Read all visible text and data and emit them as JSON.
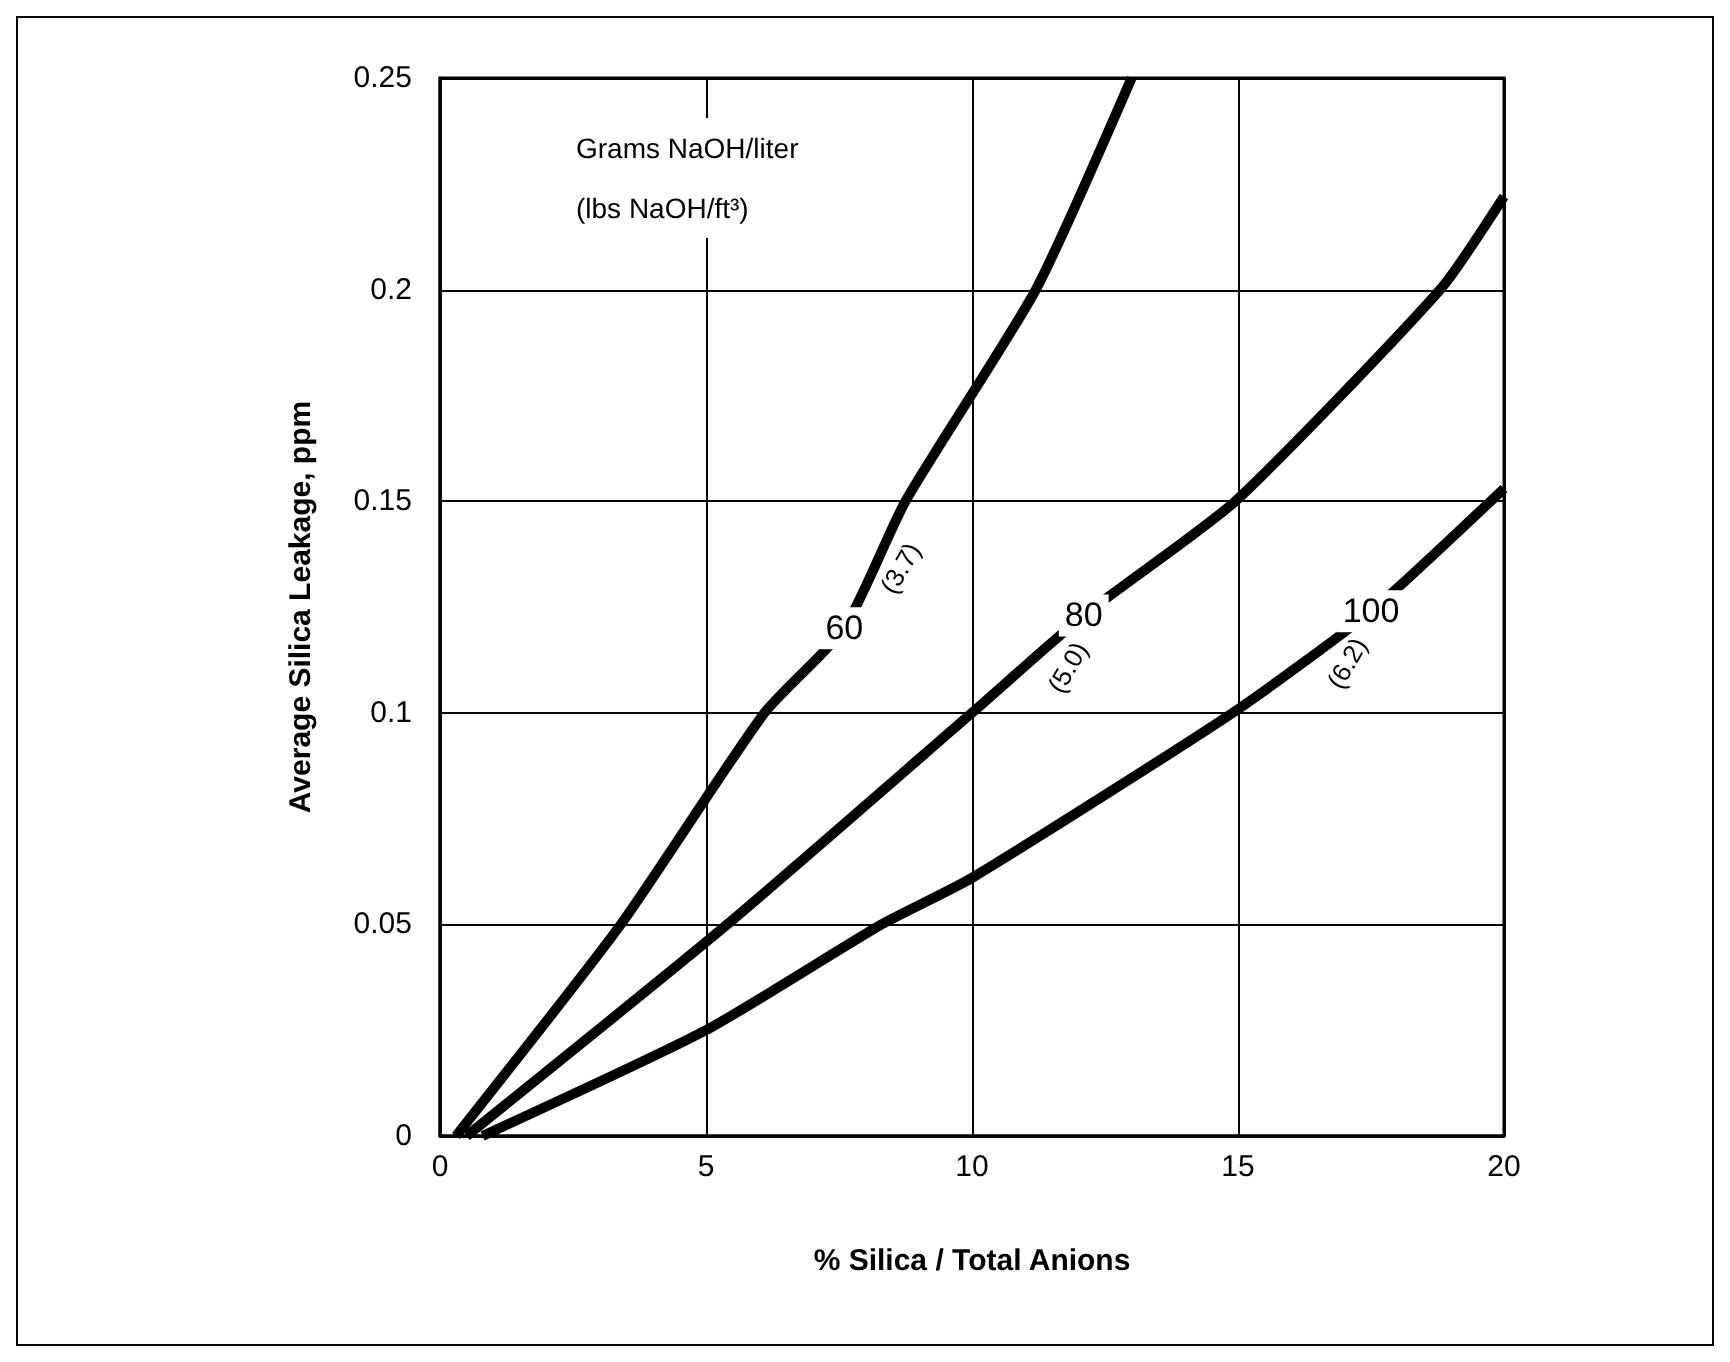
{
  "chart_data": {
    "type": "line",
    "xlabel": "% Silica / Total Anions",
    "ylabel": "Average Silica Leakage, ppm",
    "legend_title": "Grams NaOH/liter\n(lbs NaOH/ft³)",
    "xlim": [
      0,
      20
    ],
    "xticks": [
      0,
      5,
      10,
      15,
      20
    ],
    "ylim": [
      0,
      0.25
    ],
    "yticks": [
      0,
      0.05,
      0.1,
      0.15,
      0.2,
      0.25
    ],
    "grid": true,
    "legend": false,
    "marker": "none",
    "line_style": "solid",
    "series": [
      {
        "name": "60",
        "color": "#000000",
        "x": [
          0.3,
          3.4,
          6.1,
          7.6,
          8.75,
          11.2,
          13.0
        ],
        "values": [
          0,
          0.05,
          0.1,
          0.12,
          0.15,
          0.2,
          0.25
        ]
      },
      {
        "name": "80",
        "color": "#000000",
        "x": [
          0.5,
          5.4,
          10,
          12.1,
          14.95,
          18.8,
          20
        ],
        "values": [
          0,
          0.05,
          0.1,
          0.123,
          0.15,
          0.2,
          0.222
        ]
      },
      {
        "name": "100",
        "color": "#000000",
        "x": [
          0.8,
          5,
          8.3,
          10,
          14.9,
          17.5,
          20
        ],
        "values": [
          0,
          0.025,
          0.05,
          0.061,
          0.1,
          0.124,
          0.153
        ]
      }
    ],
    "annotations": [
      "(3.7)",
      "(5.0)",
      "(6.2)"
    ]
  }
}
